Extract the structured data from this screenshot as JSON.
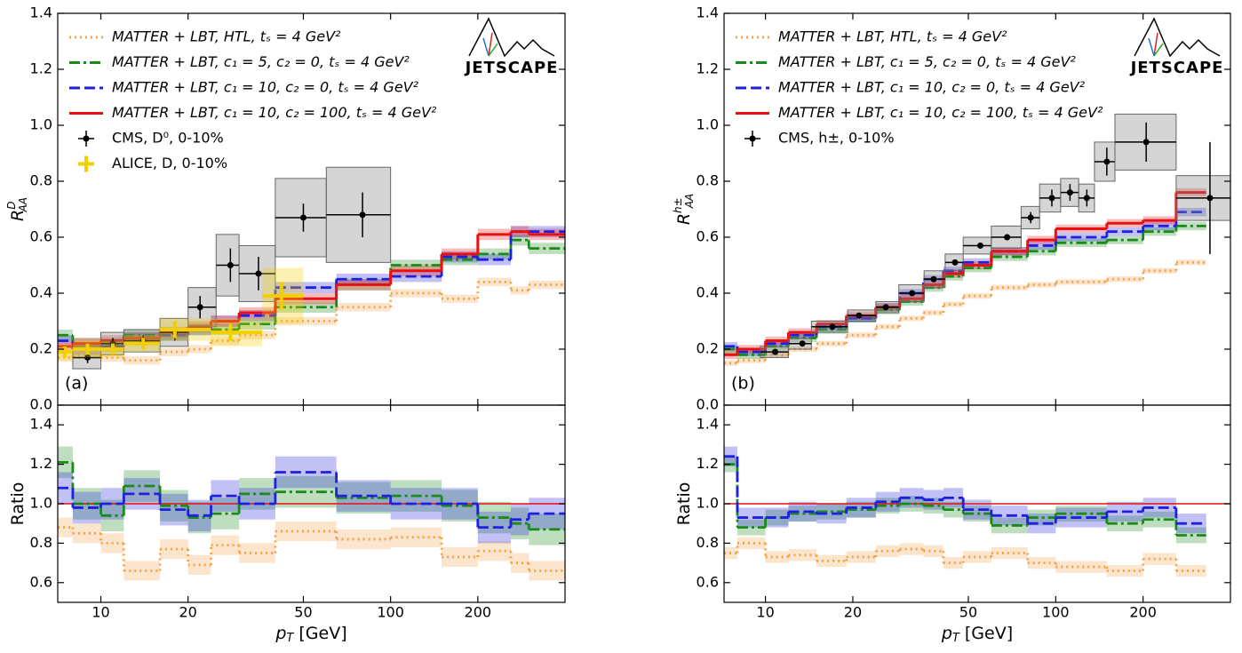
{
  "chart_data": [
    {
      "type": "step",
      "label": "(a)",
      "logo": "JETSCAPE",
      "ylabel": "R",
      "ylabel_sub": "AA",
      "ylabel_sup": "D",
      "xscale": "log",
      "xlim": [
        7.1,
        400
      ],
      "ylim": [
        0,
        1.4
      ],
      "xticks": [
        10,
        20,
        50,
        100,
        200
      ],
      "yticks": [
        {
          "value": 0,
          "label": "0.0"
        },
        0.2,
        0.4,
        0.6,
        0.8,
        {
          "value": 1,
          "label": "1.0"
        },
        1.2,
        1.4
      ],
      "legend": "upper left",
      "edges": [
        7.1,
        8,
        10,
        12,
        16,
        20,
        24,
        30,
        40,
        65,
        100,
        150,
        200,
        260,
        300,
        400
      ],
      "series": [
        {
          "name": "MATTER + LBT,  HTL,  tₛ = 4 GeV²",
          "color": "#f5a04a",
          "style": "dotted",
          "band": 0.015,
          "values": [
            0.17,
            0.18,
            0.17,
            0.16,
            0.19,
            0.2,
            0.23,
            0.25,
            0.3,
            0.35,
            0.4,
            0.38,
            0.44,
            0.41,
            0.43
          ]
        },
        {
          "name": "MATTER + LBT,  c₁ = 5, c₂ = 0,  tₛ = 4 GeV²",
          "color": "#1a8a1a",
          "style": "dashdot",
          "band": 0.02,
          "values": [
            0.25,
            0.22,
            0.22,
            0.25,
            0.25,
            0.27,
            0.27,
            0.29,
            0.35,
            0.43,
            0.5,
            0.52,
            0.54,
            0.59,
            0.56
          ]
        },
        {
          "name": "MATTER + LBT,  c₁ = 10, c₂ = 0,  tₛ = 4 GeV²",
          "color": "#1f1fe0",
          "style": "dashed",
          "band": 0.02,
          "values": [
            0.23,
            0.2,
            0.21,
            0.24,
            0.25,
            0.27,
            0.3,
            0.32,
            0.42,
            0.45,
            0.46,
            0.53,
            0.52,
            0.62,
            0.62
          ]
        },
        {
          "name": "MATTER + LBT,  c₁ = 10, c₂ = 100,  tₛ = 4 GeV²",
          "color": "#e81010",
          "style": "solid",
          "band": 0.02,
          "values": [
            0.21,
            0.22,
            0.23,
            0.24,
            0.26,
            0.28,
            0.3,
            0.33,
            0.38,
            0.43,
            0.48,
            0.54,
            0.61,
            0.62,
            0.61
          ]
        }
      ],
      "points": [
        {
          "name": "CMS, D⁰, 0-10%",
          "color": "#000000",
          "marker": "circle",
          "x": [
            9,
            11,
            14,
            18,
            22,
            28,
            35,
            50,
            80
          ],
          "xlow": [
            8,
            10,
            12,
            16,
            20,
            25,
            30,
            40,
            60
          ],
          "xhigh": [
            10,
            12,
            16,
            20,
            25,
            30,
            40,
            60,
            100
          ],
          "values": [
            0.17,
            0.22,
            0.23,
            0.26,
            0.35,
            0.5,
            0.47,
            0.67,
            0.68
          ],
          "errors": [
            0.02,
            0.02,
            0.02,
            0.03,
            0.04,
            0.06,
            0.06,
            0.05,
            0.08
          ],
          "sys": [
            0.04,
            0.04,
            0.04,
            0.05,
            0.07,
            0.11,
            0.1,
            0.14,
            0.17
          ]
        },
        {
          "name": "ALICE, D, 0-10%",
          "color": "#f2d000",
          "marker": "plus",
          "x": [
            7.5,
            9,
            11,
            14,
            18,
            28,
            42
          ],
          "xlow": [
            7,
            8,
            10,
            12,
            16,
            24,
            36
          ],
          "xhigh": [
            8,
            10,
            12,
            16,
            24,
            36,
            50
          ],
          "values": [
            0.19,
            0.2,
            0.2,
            0.22,
            0.27,
            0.26,
            0.39
          ],
          "errors": [
            0.02,
            0.02,
            0.02,
            0.02,
            0.03,
            0.03,
            0.05
          ],
          "sys": [
            0.03,
            0.03,
            0.03,
            0.03,
            0.04,
            0.05,
            0.1
          ]
        }
      ]
    },
    {
      "type": "step",
      "ylabel": "Ratio",
      "xlabel": "p",
      "xlabel_sub": "T",
      "xlabel_unit": " [GeV]",
      "xscale": "log",
      "xlim": [
        7.1,
        400
      ],
      "ylim": [
        0.5,
        1.5
      ],
      "xticks": [
        10,
        20,
        50,
        100,
        200
      ],
      "yticks": [
        0.6,
        0.8,
        {
          "value": 1,
          "label": "1.0"
        },
        1.2,
        1.4
      ],
      "reference": {
        "value": 1,
        "color": "#e81010"
      },
      "edges": [
        7.1,
        8,
        10,
        12,
        16,
        20,
        24,
        30,
        40,
        65,
        100,
        150,
        200,
        260,
        300,
        400
      ],
      "series": [
        {
          "color": "#f5a04a",
          "style": "dotted",
          "band": 0.05,
          "values": [
            0.88,
            0.85,
            0.8,
            0.66,
            0.77,
            0.69,
            0.79,
            0.75,
            0.86,
            0.82,
            0.83,
            0.73,
            0.76,
            0.7,
            0.66
          ]
        },
        {
          "color": "#1a8a1a",
          "style": "dashdot",
          "band": 0.08,
          "values": [
            1.21,
            1,
            0.94,
            1.09,
            0.99,
            0.93,
            0.95,
            1.05,
            1.06,
            1.03,
            1.04,
            0.99,
            0.93,
            0.9,
            0.87
          ]
        },
        {
          "color": "#1f1fe0",
          "style": "dashed",
          "band": 0.08,
          "values": [
            1.08,
            0.98,
            1,
            1.05,
            0.97,
            0.94,
            1.04,
            1,
            1.16,
            1.04,
            1,
            1,
            0.88,
            0.92,
            0.95
          ]
        }
      ]
    },
    {
      "type": "step",
      "label": "(b)",
      "logo": "JETSCAPE",
      "ylabel": "R",
      "ylabel_sub": "AA",
      "ylabel_sup": "h±",
      "xscale": "log",
      "xlim": [
        7.2,
        400
      ],
      "ylim": [
        0,
        1.4
      ],
      "xticks": [
        10,
        20,
        50,
        100,
        200
      ],
      "yticks": [
        {
          "value": 0,
          "label": "0.0"
        },
        0.2,
        0.4,
        0.6,
        0.8,
        {
          "value": 1,
          "label": "1.0"
        },
        1.2,
        1.4
      ],
      "legend": "upper left",
      "edges": [
        7.2,
        8,
        10,
        12,
        15,
        19,
        24,
        29,
        35,
        41,
        48,
        60,
        80,
        100,
        150,
        200,
        260,
        330
      ],
      "series": [
        {
          "name": "MATTER + LBT,  HTL,  tₛ = 4 GeV²",
          "color": "#f5a04a",
          "style": "dotted",
          "band": 0.01,
          "values": [
            0.15,
            0.16,
            0.18,
            0.2,
            0.22,
            0.25,
            0.28,
            0.31,
            0.33,
            0.36,
            0.39,
            0.42,
            0.43,
            0.44,
            0.45,
            0.48,
            0.51
          ]
        },
        {
          "name": "MATTER + LBT,  c₁ = 5,  c₂ = 0,  tₛ = 4 GeV²",
          "color": "#1a8a1a",
          "style": "dashdot",
          "band": 0.015,
          "values": [
            0.2,
            0.18,
            0.21,
            0.24,
            0.27,
            0.31,
            0.34,
            0.37,
            0.42,
            0.46,
            0.49,
            0.53,
            0.55,
            0.58,
            0.59,
            0.62,
            0.64
          ]
        },
        {
          "name": "MATTER + LBT,  c₁ = 10,  c₂ = 0,  tₛ = 4 GeV²",
          "color": "#1f1fe0",
          "style": "dashed",
          "band": 0.015,
          "values": [
            0.21,
            0.19,
            0.22,
            0.25,
            0.28,
            0.31,
            0.35,
            0.4,
            0.45,
            0.48,
            0.51,
            0.55,
            0.57,
            0.6,
            0.62,
            0.64,
            0.69
          ]
        },
        {
          "name": "MATTER + LBT,  c₁ = 10,  c₂ = 100,  tₛ = 4 GeV²",
          "color": "#e81010",
          "style": "solid",
          "band": 0.015,
          "values": [
            0.18,
            0.2,
            0.23,
            0.26,
            0.29,
            0.32,
            0.35,
            0.38,
            0.43,
            0.47,
            0.5,
            0.55,
            0.59,
            0.63,
            0.65,
            0.66,
            0.76
          ]
        }
      ],
      "points": [
        {
          "name": "CMS, h±, 0-10%",
          "color": "#000000",
          "marker": "circle",
          "x": [
            10.8,
            13.4,
            17,
            21,
            26,
            32,
            38,
            45,
            55,
            68,
            82,
            97,
            112,
            128,
            150,
            205,
            340
          ],
          "xlow": [
            9.6,
            12,
            14.4,
            19.2,
            24,
            28.8,
            35.2,
            41.6,
            48,
            60,
            76,
            88,
            104,
            120,
            136,
            160,
            260
          ],
          "xhigh": [
            12,
            14.4,
            19.2,
            24,
            28.8,
            35.2,
            41.6,
            48,
            60,
            76,
            88,
            104,
            120,
            136,
            160,
            260,
            400
          ],
          "values": [
            0.19,
            0.22,
            0.28,
            0.32,
            0.35,
            0.4,
            0.45,
            0.51,
            0.57,
            0.6,
            0.67,
            0.74,
            0.76,
            0.74,
            0.87,
            0.94,
            0.74
          ],
          "errors": [
            0.01,
            0.01,
            0.01,
            0.01,
            0.01,
            0.01,
            0.01,
            0.01,
            0.01,
            0.01,
            0.02,
            0.03,
            0.03,
            0.03,
            0.05,
            0.07,
            0.2
          ],
          "sys": [
            0.02,
            0.02,
            0.02,
            0.02,
            0.02,
            0.03,
            0.03,
            0.03,
            0.03,
            0.04,
            0.04,
            0.05,
            0.05,
            0.05,
            0.07,
            0.1,
            0.08
          ]
        }
      ]
    },
    {
      "type": "step",
      "ylabel": "Ratio",
      "xlabel": "p",
      "xlabel_sub": "T",
      "xlabel_unit": " [GeV]",
      "xscale": "log",
      "xlim": [
        7.2,
        400
      ],
      "ylim": [
        0.5,
        1.5
      ],
      "xticks": [
        10,
        20,
        50,
        100,
        200
      ],
      "yticks": [
        0.6,
        0.8,
        {
          "value": 1,
          "label": "1.0"
        },
        1.2,
        1.4
      ],
      "reference": {
        "value": 1,
        "color": "#e81010"
      },
      "edges": [
        7.2,
        8,
        10,
        12,
        15,
        19,
        24,
        29,
        35,
        41,
        48,
        60,
        80,
        100,
        150,
        200,
        260,
        330
      ],
      "series": [
        {
          "color": "#f5a04a",
          "style": "dotted",
          "band": 0.03,
          "values": [
            0.75,
            0.8,
            0.73,
            0.74,
            0.71,
            0.73,
            0.76,
            0.77,
            0.76,
            0.7,
            0.73,
            0.75,
            0.7,
            0.68,
            0.66,
            0.72,
            0.66
          ]
        },
        {
          "color": "#1a8a1a",
          "style": "dashdot",
          "band": 0.04,
          "values": [
            1.2,
            0.88,
            0.93,
            0.95,
            0.96,
            0.97,
            0.99,
            1,
            0.99,
            0.97,
            0.95,
            0.89,
            0.93,
            0.95,
            0.9,
            0.92,
            0.84
          ]
        },
        {
          "color": "#1f1fe0",
          "style": "dashed",
          "band": 0.05,
          "values": [
            1.24,
            0.93,
            0.93,
            0.96,
            0.95,
            0.98,
            1.01,
            1.03,
            1.02,
            1.03,
            0.97,
            0.94,
            0.9,
            0.93,
            0.96,
            0.98,
            0.9
          ]
        }
      ]
    }
  ]
}
